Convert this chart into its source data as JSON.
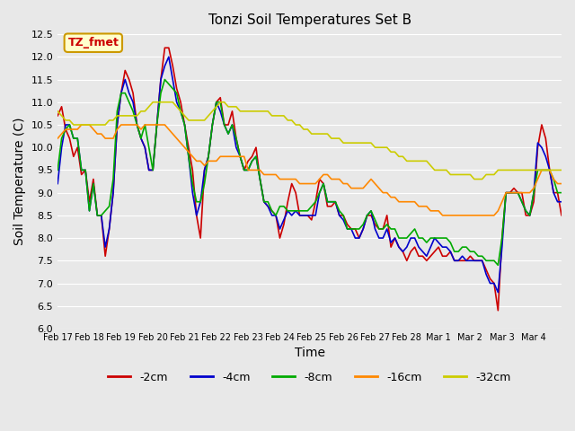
{
  "title": "Tonzi Soil Temperatures Set B",
  "xlabel": "Time",
  "ylabel": "Soil Temperature (C)",
  "ylim": [
    6.0,
    12.5
  ],
  "annotation_text": "TZ_fmet",
  "annotation_bg": "#ffffcc",
  "annotation_border": "#cc9900",
  "annotation_fg": "#cc0000",
  "bg_color": "#e8e8e8",
  "plot_bg": "#e8e8e8",
  "line_colors": [
    "#cc0000",
    "#0000cc",
    "#00aa00",
    "#ff8800",
    "#cccc00"
  ],
  "line_labels": [
    "-2cm",
    "-4cm",
    "-8cm",
    "-16cm",
    "-32cm"
  ],
  "x_tick_labels": [
    "Feb 17",
    "Feb 18",
    "Feb 19",
    "Feb 20",
    "Feb 21",
    "Feb 22",
    "Feb 23",
    "Feb 24",
    "Feb 25",
    "Feb 26",
    "Feb 27",
    "Feb 28",
    "Mar 1",
    "Mar 2",
    "Mar 3",
    "Mar 4"
  ],
  "data_2cm": [
    10.7,
    10.9,
    10.4,
    10.2,
    9.8,
    10.0,
    9.4,
    9.5,
    8.8,
    9.3,
    8.5,
    8.5,
    7.6,
    8.2,
    9.0,
    10.5,
    11.2,
    11.7,
    11.5,
    11.2,
    10.5,
    10.2,
    10.0,
    9.5,
    9.5,
    10.5,
    11.5,
    12.2,
    12.2,
    11.8,
    11.3,
    11.0,
    10.5,
    10.0,
    9.5,
    8.5,
    8.0,
    9.5,
    9.8,
    10.5,
    11.0,
    11.1,
    10.5,
    10.5,
    10.8,
    10.2,
    9.8,
    9.5,
    9.7,
    9.8,
    10.0,
    9.3,
    8.8,
    8.7,
    8.6,
    8.5,
    8.0,
    8.3,
    8.8,
    9.2,
    9.0,
    8.5,
    8.5,
    8.5,
    8.4,
    8.8,
    9.3,
    9.2,
    8.7,
    8.7,
    8.8,
    8.5,
    8.5,
    8.3,
    8.2,
    8.2,
    8.0,
    8.2,
    8.5,
    8.5,
    8.3,
    8.2,
    8.2,
    8.5,
    7.8,
    8.0,
    7.8,
    7.7,
    7.5,
    7.7,
    7.8,
    7.6,
    7.6,
    7.5,
    7.6,
    7.7,
    7.8,
    7.6,
    7.6,
    7.7,
    7.5,
    7.5,
    7.5,
    7.5,
    7.6,
    7.5,
    7.5,
    7.5,
    7.3,
    7.1,
    7.0,
    6.4,
    8.0,
    9.0,
    9.0,
    9.1,
    9.0,
    9.0,
    8.5,
    8.5,
    8.8,
    10.0,
    10.5,
    10.2,
    9.5,
    9.0,
    9.0,
    8.5
  ],
  "data_4cm": [
    9.2,
    10.0,
    10.5,
    10.5,
    10.2,
    10.2,
    9.5,
    9.5,
    8.6,
    9.2,
    8.5,
    8.5,
    7.8,
    8.2,
    9.0,
    10.5,
    11.2,
    11.5,
    11.2,
    11.0,
    10.5,
    10.2,
    10.0,
    9.5,
    9.5,
    10.5,
    11.5,
    11.8,
    12.0,
    11.5,
    11.0,
    10.8,
    10.5,
    9.8,
    9.0,
    8.5,
    8.8,
    9.5,
    9.8,
    10.5,
    11.0,
    10.8,
    10.5,
    10.3,
    10.5,
    10.0,
    9.8,
    9.5,
    9.5,
    9.7,
    9.8,
    9.3,
    8.8,
    8.7,
    8.5,
    8.5,
    8.2,
    8.4,
    8.6,
    8.5,
    8.6,
    8.5,
    8.5,
    8.5,
    8.5,
    8.5,
    9.0,
    9.2,
    8.8,
    8.8,
    8.8,
    8.5,
    8.4,
    8.2,
    8.2,
    8.0,
    8.0,
    8.2,
    8.5,
    8.6,
    8.2,
    8.0,
    8.0,
    8.2,
    7.9,
    8.0,
    7.8,
    7.7,
    7.8,
    8.0,
    8.0,
    7.8,
    7.7,
    7.6,
    7.8,
    8.0,
    7.9,
    7.8,
    7.8,
    7.7,
    7.5,
    7.5,
    7.6,
    7.5,
    7.5,
    7.5,
    7.5,
    7.5,
    7.2,
    7.0,
    7.0,
    6.8,
    7.8,
    9.0,
    9.0,
    9.0,
    9.0,
    8.8,
    8.6,
    8.5,
    9.0,
    10.1,
    10.0,
    9.8,
    9.5,
    9.0,
    8.8,
    8.8
  ],
  "data_8cm": [
    9.5,
    10.2,
    10.4,
    10.5,
    10.2,
    10.2,
    9.5,
    9.5,
    8.6,
    9.2,
    8.5,
    8.5,
    8.6,
    8.7,
    9.3,
    10.8,
    11.2,
    11.2,
    11.0,
    10.8,
    10.5,
    10.2,
    10.5,
    10.0,
    9.5,
    10.5,
    11.2,
    11.5,
    11.4,
    11.3,
    11.2,
    10.8,
    10.5,
    9.8,
    9.2,
    8.8,
    8.8,
    9.2,
    9.8,
    10.5,
    11.0,
    11.0,
    10.5,
    10.3,
    10.5,
    10.2,
    9.8,
    9.5,
    9.5,
    9.7,
    9.8,
    9.3,
    8.8,
    8.8,
    8.6,
    8.5,
    8.7,
    8.7,
    8.6,
    8.6,
    8.6,
    8.6,
    8.6,
    8.6,
    8.7,
    8.8,
    9.0,
    9.2,
    8.8,
    8.8,
    8.8,
    8.6,
    8.5,
    8.2,
    8.2,
    8.2,
    8.2,
    8.3,
    8.5,
    8.6,
    8.4,
    8.2,
    8.2,
    8.3,
    8.2,
    8.2,
    8.0,
    8.0,
    8.0,
    8.1,
    8.2,
    8.0,
    8.0,
    7.9,
    8.0,
    8.0,
    8.0,
    8.0,
    8.0,
    7.9,
    7.7,
    7.7,
    7.8,
    7.8,
    7.7,
    7.7,
    7.6,
    7.6,
    7.5,
    7.5,
    7.5,
    7.4,
    8.0,
    9.0,
    9.0,
    9.0,
    9.0,
    8.8,
    8.6,
    8.5,
    9.0,
    9.5,
    9.5,
    9.5,
    9.5,
    9.3,
    9.0,
    9.0
  ],
  "data_16cm": [
    10.2,
    10.3,
    10.4,
    10.4,
    10.4,
    10.4,
    10.5,
    10.5,
    10.5,
    10.4,
    10.3,
    10.3,
    10.2,
    10.2,
    10.2,
    10.4,
    10.5,
    10.5,
    10.5,
    10.5,
    10.5,
    10.4,
    10.5,
    10.5,
    10.5,
    10.5,
    10.5,
    10.5,
    10.4,
    10.3,
    10.2,
    10.1,
    10.0,
    9.9,
    9.8,
    9.7,
    9.7,
    9.6,
    9.7,
    9.7,
    9.7,
    9.8,
    9.8,
    9.8,
    9.8,
    9.8,
    9.8,
    9.8,
    9.5,
    9.5,
    9.5,
    9.5,
    9.4,
    9.4,
    9.4,
    9.4,
    9.3,
    9.3,
    9.3,
    9.3,
    9.3,
    9.2,
    9.2,
    9.2,
    9.2,
    9.2,
    9.3,
    9.4,
    9.4,
    9.3,
    9.3,
    9.3,
    9.2,
    9.2,
    9.1,
    9.1,
    9.1,
    9.1,
    9.2,
    9.3,
    9.2,
    9.1,
    9.0,
    9.0,
    8.9,
    8.9,
    8.8,
    8.8,
    8.8,
    8.8,
    8.8,
    8.7,
    8.7,
    8.7,
    8.6,
    8.6,
    8.6,
    8.5,
    8.5,
    8.5,
    8.5,
    8.5,
    8.5,
    8.5,
    8.5,
    8.5,
    8.5,
    8.5,
    8.5,
    8.5,
    8.5,
    8.6,
    8.8,
    9.0,
    9.0,
    9.0,
    9.0,
    9.0,
    9.0,
    9.0,
    9.1,
    9.3,
    9.5,
    9.5,
    9.5,
    9.3,
    9.2,
    9.2
  ],
  "data_32cm": [
    10.8,
    10.7,
    10.6,
    10.6,
    10.5,
    10.5,
    10.5,
    10.5,
    10.5,
    10.5,
    10.5,
    10.5,
    10.5,
    10.6,
    10.6,
    10.7,
    10.7,
    10.7,
    10.7,
    10.7,
    10.7,
    10.8,
    10.8,
    10.9,
    11.0,
    11.0,
    11.0,
    11.0,
    11.0,
    11.0,
    10.9,
    10.8,
    10.7,
    10.6,
    10.6,
    10.6,
    10.6,
    10.6,
    10.7,
    10.8,
    10.9,
    11.0,
    11.0,
    10.9,
    10.9,
    10.9,
    10.8,
    10.8,
    10.8,
    10.8,
    10.8,
    10.8,
    10.8,
    10.8,
    10.7,
    10.7,
    10.7,
    10.7,
    10.6,
    10.6,
    10.5,
    10.5,
    10.4,
    10.4,
    10.3,
    10.3,
    10.3,
    10.3,
    10.3,
    10.2,
    10.2,
    10.2,
    10.1,
    10.1,
    10.1,
    10.1,
    10.1,
    10.1,
    10.1,
    10.1,
    10.0,
    10.0,
    10.0,
    10.0,
    9.9,
    9.9,
    9.8,
    9.8,
    9.7,
    9.7,
    9.7,
    9.7,
    9.7,
    9.7,
    9.6,
    9.5,
    9.5,
    9.5,
    9.5,
    9.4,
    9.4,
    9.4,
    9.4,
    9.4,
    9.4,
    9.3,
    9.3,
    9.3,
    9.4,
    9.4,
    9.4,
    9.5,
    9.5,
    9.5,
    9.5,
    9.5,
    9.5,
    9.5,
    9.5,
    9.5,
    9.5,
    9.5,
    9.5,
    9.5,
    9.5,
    9.5,
    9.5,
    9.5
  ]
}
